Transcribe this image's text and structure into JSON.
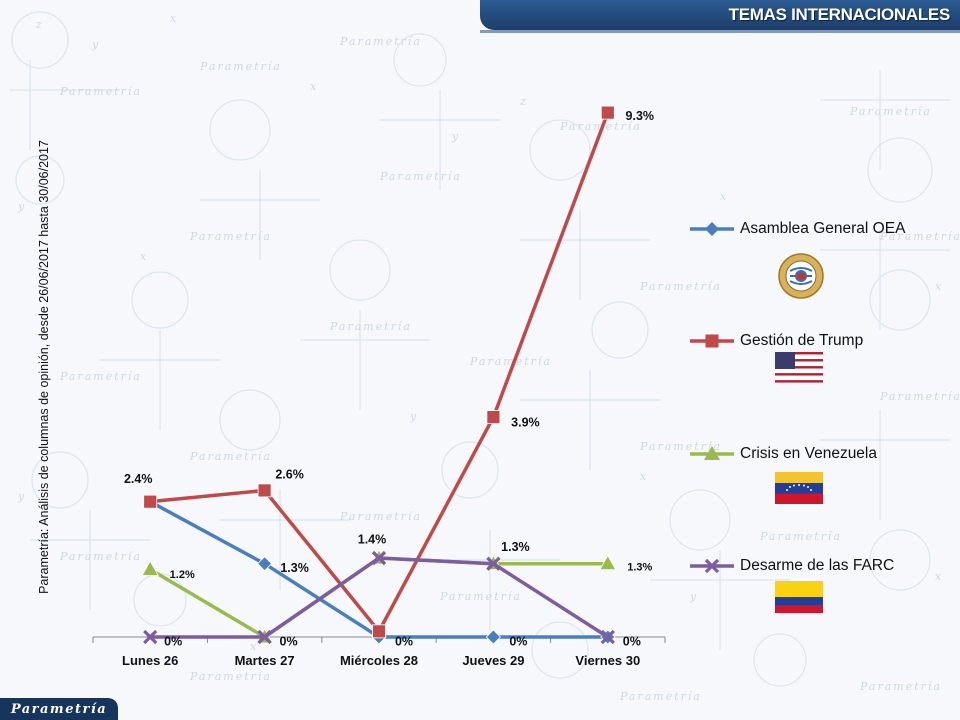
{
  "header": {
    "title": "TEMAS INTERNACIONALES"
  },
  "side_note": "Parametría: Análisis de columnas de opinión, desde 26/06/2017 hasta 30/06/2017",
  "footer": {
    "logo_text": "Parametría"
  },
  "watermark": {
    "word": "Parametría"
  },
  "colors": {
    "header_bg": "#1f4270",
    "series_oea": "#4a7fbf",
    "series_trump": "#c0494a",
    "series_venezuela": "#98ba4e",
    "series_farc": "#7d5ca0"
  },
  "chart_data": {
    "type": "line",
    "categories": [
      "Lunes 26",
      "Martes 27",
      "Miércoles 28",
      "Jueves 29",
      "Viernes 30"
    ],
    "ylim": [
      0,
      10
    ],
    "grid": false,
    "legend_position": "right",
    "series": [
      {
        "name": "Asamblea General OEA",
        "values": [
          2.4,
          1.3,
          0,
          0,
          0
        ],
        "labels": [
          "",
          "1.3%",
          "0%",
          "0%",
          ""
        ],
        "marker": "diamond",
        "color": "#4a7fbf",
        "media": "oas-seal"
      },
      {
        "name": "Gestión de Trump",
        "values": [
          2.4,
          2.6,
          0.1,
          3.9,
          9.3
        ],
        "labels": [
          "2.4%",
          "2.6%",
          "",
          "3.9%",
          "9.3%"
        ],
        "marker": "square",
        "color": "#c0494a",
        "media": "usa-flag"
      },
      {
        "name": "Crisis en Venezuela",
        "values": [
          1.2,
          0,
          1.4,
          1.3,
          1.3
        ],
        "labels": [
          "1.2%",
          "",
          "1.4%",
          "1.3%",
          "1.3%"
        ],
        "marker": "triangle",
        "color": "#98ba4e",
        "media": "venezuela-flag"
      },
      {
        "name": "Desarme de las FARC",
        "values": [
          0,
          0,
          1.4,
          1.3,
          0
        ],
        "labels": [
          "0%",
          "0%",
          "",
          "",
          "0%"
        ],
        "marker": "x",
        "color": "#7d5ca0",
        "media": "colombia-flag"
      }
    ]
  }
}
